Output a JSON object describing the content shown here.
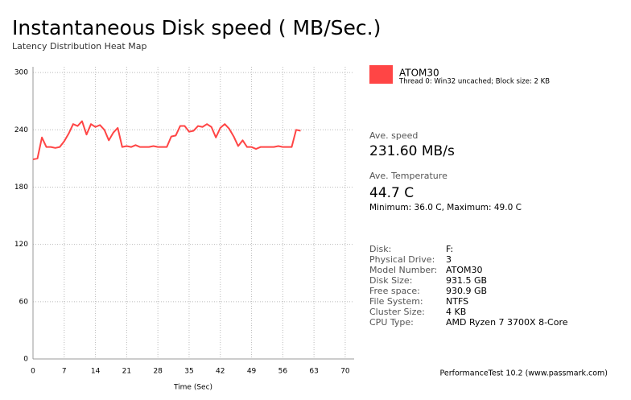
{
  "chart_data": {
    "type": "line",
    "title": "Instantaneous Disk speed ( MB/Sec.)",
    "subtitle": "Latency Distribution Heat Map",
    "x_label": "Time (Sec)",
    "x": [
      0,
      1,
      2,
      3,
      4,
      5,
      6,
      7,
      8,
      9,
      10,
      11,
      12,
      13,
      14,
      15,
      16,
      17,
      18,
      19,
      20,
      21,
      22,
      23,
      24,
      25,
      26,
      27,
      28,
      29,
      30,
      31,
      32,
      33,
      34,
      35,
      36,
      37,
      38,
      39,
      40,
      41,
      42,
      43,
      44,
      45,
      46,
      47,
      48,
      49,
      50,
      51,
      52,
      53,
      54,
      55,
      56,
      57,
      58,
      59,
      60
    ],
    "series": [
      {
        "name": "ATOM30",
        "color": "#ff4545",
        "values": [
          209,
          210,
          232,
          222,
          222,
          221,
          222,
          228,
          236,
          246,
          244,
          249,
          235,
          246,
          243,
          245,
          240,
          229,
          237,
          242,
          222,
          223,
          222,
          224,
          222,
          222,
          222,
          223,
          222,
          222,
          222,
          233,
          234,
          244,
          244,
          238,
          239,
          244,
          243,
          246,
          243,
          232,
          242,
          246,
          241,
          233,
          223,
          229,
          222,
          222,
          220,
          222,
          222,
          222,
          222,
          223,
          222,
          222,
          222,
          240,
          239
        ]
      }
    ],
    "legend_detail": "Thread 0: Win32 uncached; Block size: 2 KB",
    "xlim": [
      0,
      72
    ],
    "xticks": [
      0,
      7,
      14,
      21,
      28,
      35,
      42,
      49,
      56,
      63,
      70
    ],
    "ylim": [
      0,
      306
    ],
    "yticks": [
      0,
      60,
      120,
      180,
      240,
      300
    ],
    "grid": true
  },
  "stats": {
    "speed_label": "Ave. speed",
    "speed": "231.60 MB/s",
    "temp_label": "Ave. Temperature",
    "temp": "44.7 C",
    "temp_range": "Minimum: 36.0 C, Maximum: 49.0 C"
  },
  "info": [
    [
      "Disk:",
      "F:"
    ],
    [
      "Physical Drive:",
      "3"
    ],
    [
      "Model Number:",
      "ATOM30"
    ],
    [
      "Disk Size:",
      "931.5 GB"
    ],
    [
      "Free space:",
      "930.9 GB"
    ],
    [
      "File System:",
      "NTFS"
    ],
    [
      "Cluster Size:",
      "4 KB"
    ],
    [
      "CPU Type:",
      "AMD Ryzen 7 3700X 8-Core"
    ]
  ],
  "footer": "PerformanceTest 10.2 (www.passmark.com)"
}
